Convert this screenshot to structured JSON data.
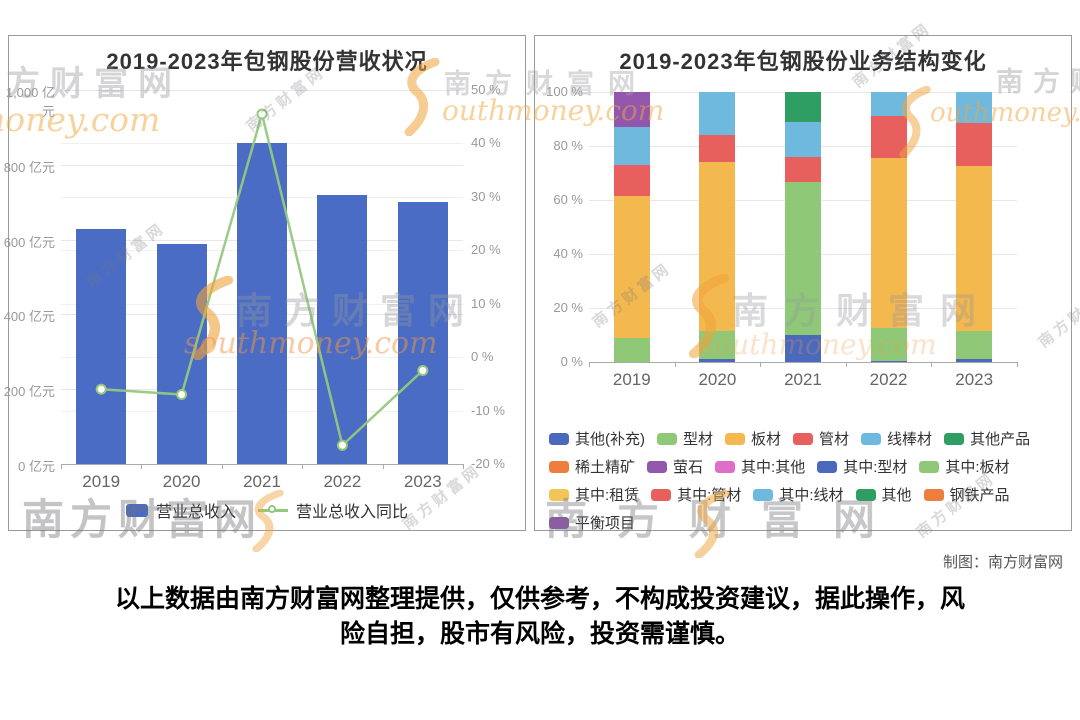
{
  "palette": {
    "blue": "#4a69bd",
    "bar_blue": "#4a6cc4",
    "line_green": "#94c97d",
    "green": "#8fc978",
    "yellow": "#f3b84e",
    "yellow2": "#f3c558",
    "red": "#e8605d",
    "lightblue": "#6fb9de",
    "darkgreen": "#2e9e63",
    "orange": "#ee7e3e",
    "purple": "#9257ad",
    "pink": "#de6ec8"
  },
  "watermark": {
    "brand_cn": "南方财富网",
    "brand_en": "southmoney.com",
    "brand_en_partial": "outhmoney.com",
    "brand_en_money": "money.com"
  },
  "page": {
    "credit": "制图：南方财富网",
    "disclaimer_line1": "以上数据由南方财富网整理提供，仅供参考，不构成投资建议，据此操作，风",
    "disclaimer_line2": "险自担，股市有风险，投资需谨慎。"
  },
  "chart_data": [
    {
      "type": "bar+line",
      "title": "2019-2023年包钢股份营收状况",
      "categories": [
        "2019",
        "2020",
        "2021",
        "2022",
        "2023"
      ],
      "series": [
        {
          "name": "营业总收入",
          "type": "bar",
          "unit": "亿元",
          "color_key": "bar_blue",
          "values": [
            628,
            588,
            857,
            718,
            700
          ]
        },
        {
          "name": "营业总收入同比",
          "type": "line",
          "unit": "%",
          "color_key": "line_green",
          "values": [
            -6,
            -7,
            45.5,
            -16.5,
            -2.5
          ]
        }
      ],
      "y_left": {
        "min": 0,
        "max": 1000,
        "step": 200,
        "ticks": [
          "0 亿元",
          "200 亿元",
          "400 亿元",
          "600 亿元",
          "800 亿元",
          "1,000 亿元"
        ]
      },
      "y_right": {
        "min": -20,
        "max": 50,
        "step": 10,
        "ticks": [
          "-20 %",
          "-10 %",
          "0 %",
          "10 %",
          "20 %",
          "30 %",
          "40 %",
          "50 %"
        ]
      },
      "grid": true,
      "legend_position": "bottom"
    },
    {
      "type": "stacked-bar-100",
      "title": "2019-2023年包钢股份业务结构变化",
      "categories": [
        "2019",
        "2020",
        "2021",
        "2022",
        "2023"
      ],
      "y_axis": {
        "min": 0,
        "max": 100,
        "step": 20,
        "ticks": [
          "0 %",
          "20 %",
          "40 %",
          "60 %",
          "80 %",
          "100 %"
        ]
      },
      "grid": true,
      "bars": [
        {
          "year": "2019",
          "segments": [
            {
              "name": "型材",
              "color_key": "green",
              "value": 9
            },
            {
              "name": "板材",
              "color_key": "yellow",
              "value": 52.5
            },
            {
              "name": "管材",
              "color_key": "red",
              "value": 11.5
            },
            {
              "name": "线棒材",
              "color_key": "lightblue",
              "value": 14
            },
            {
              "name": "平衡项目",
              "color_key": "purple",
              "value": 13
            }
          ]
        },
        {
          "year": "2020",
          "segments": [
            {
              "name": "其他(补充)",
              "color_key": "blue",
              "value": 1
            },
            {
              "name": "型材",
              "color_key": "green",
              "value": 10.5
            },
            {
              "name": "板材",
              "color_key": "yellow",
              "value": 62.5
            },
            {
              "name": "管材",
              "color_key": "red",
              "value": 10
            },
            {
              "name": "线棒材",
              "color_key": "lightblue",
              "value": 16
            }
          ]
        },
        {
          "year": "2021",
          "segments": [
            {
              "name": "其中:型材",
              "color_key": "blue",
              "value": 10
            },
            {
              "name": "其中:板材",
              "color_key": "green",
              "value": 56.5
            },
            {
              "name": "其中:管材",
              "color_key": "red",
              "value": 9.5
            },
            {
              "name": "其中:线材",
              "color_key": "lightblue",
              "value": 13
            },
            {
              "name": "其他",
              "color_key": "darkgreen",
              "value": 11
            }
          ]
        },
        {
          "year": "2022",
          "segments": [
            {
              "name": "其他(补充)",
              "color_key": "blue",
              "value": 0.5
            },
            {
              "name": "型材",
              "color_key": "green",
              "value": 12
            },
            {
              "name": "板材",
              "color_key": "yellow",
              "value": 63
            },
            {
              "name": "管材",
              "color_key": "red",
              "value": 15.5
            },
            {
              "name": "线棒材",
              "color_key": "lightblue",
              "value": 9
            }
          ]
        },
        {
          "year": "2023",
          "segments": [
            {
              "name": "其他(补充)",
              "color_key": "blue",
              "value": 1
            },
            {
              "name": "型材",
              "color_key": "green",
              "value": 10.5
            },
            {
              "name": "板材",
              "color_key": "yellow",
              "value": 61
            },
            {
              "name": "管材",
              "color_key": "red",
              "value": 16
            },
            {
              "name": "线棒材",
              "color_key": "lightblue",
              "value": 11.5
            }
          ]
        }
      ],
      "legend_rows": [
        [
          {
            "label": "其他(补充)",
            "color_key": "blue"
          },
          {
            "label": "型材",
            "color_key": "green"
          },
          {
            "label": "板材",
            "color_key": "yellow"
          },
          {
            "label": "管材",
            "color_key": "red"
          },
          {
            "label": "线棒材",
            "color_key": "lightblue"
          },
          {
            "label": "其他产品",
            "color_key": "darkgreen"
          }
        ],
        [
          {
            "label": "稀土精矿",
            "color_key": "orange"
          },
          {
            "label": "萤石",
            "color_key": "purple"
          },
          {
            "label": "其中:其他",
            "color_key": "pink"
          },
          {
            "label": "其中:型材",
            "color_key": "blue"
          },
          {
            "label": "其中:板材",
            "color_key": "green"
          }
        ],
        [
          {
            "label": "其中:租赁",
            "color_key": "yellow2"
          },
          {
            "label": "其中:管材",
            "color_key": "red"
          },
          {
            "label": "其中:线材",
            "color_key": "lightblue"
          },
          {
            "label": "其他",
            "color_key": "darkgreen"
          },
          {
            "label": "钢铁产品",
            "color_key": "orange"
          }
        ],
        [
          {
            "label": "平衡项目",
            "color_key": "purple"
          }
        ]
      ]
    }
  ]
}
